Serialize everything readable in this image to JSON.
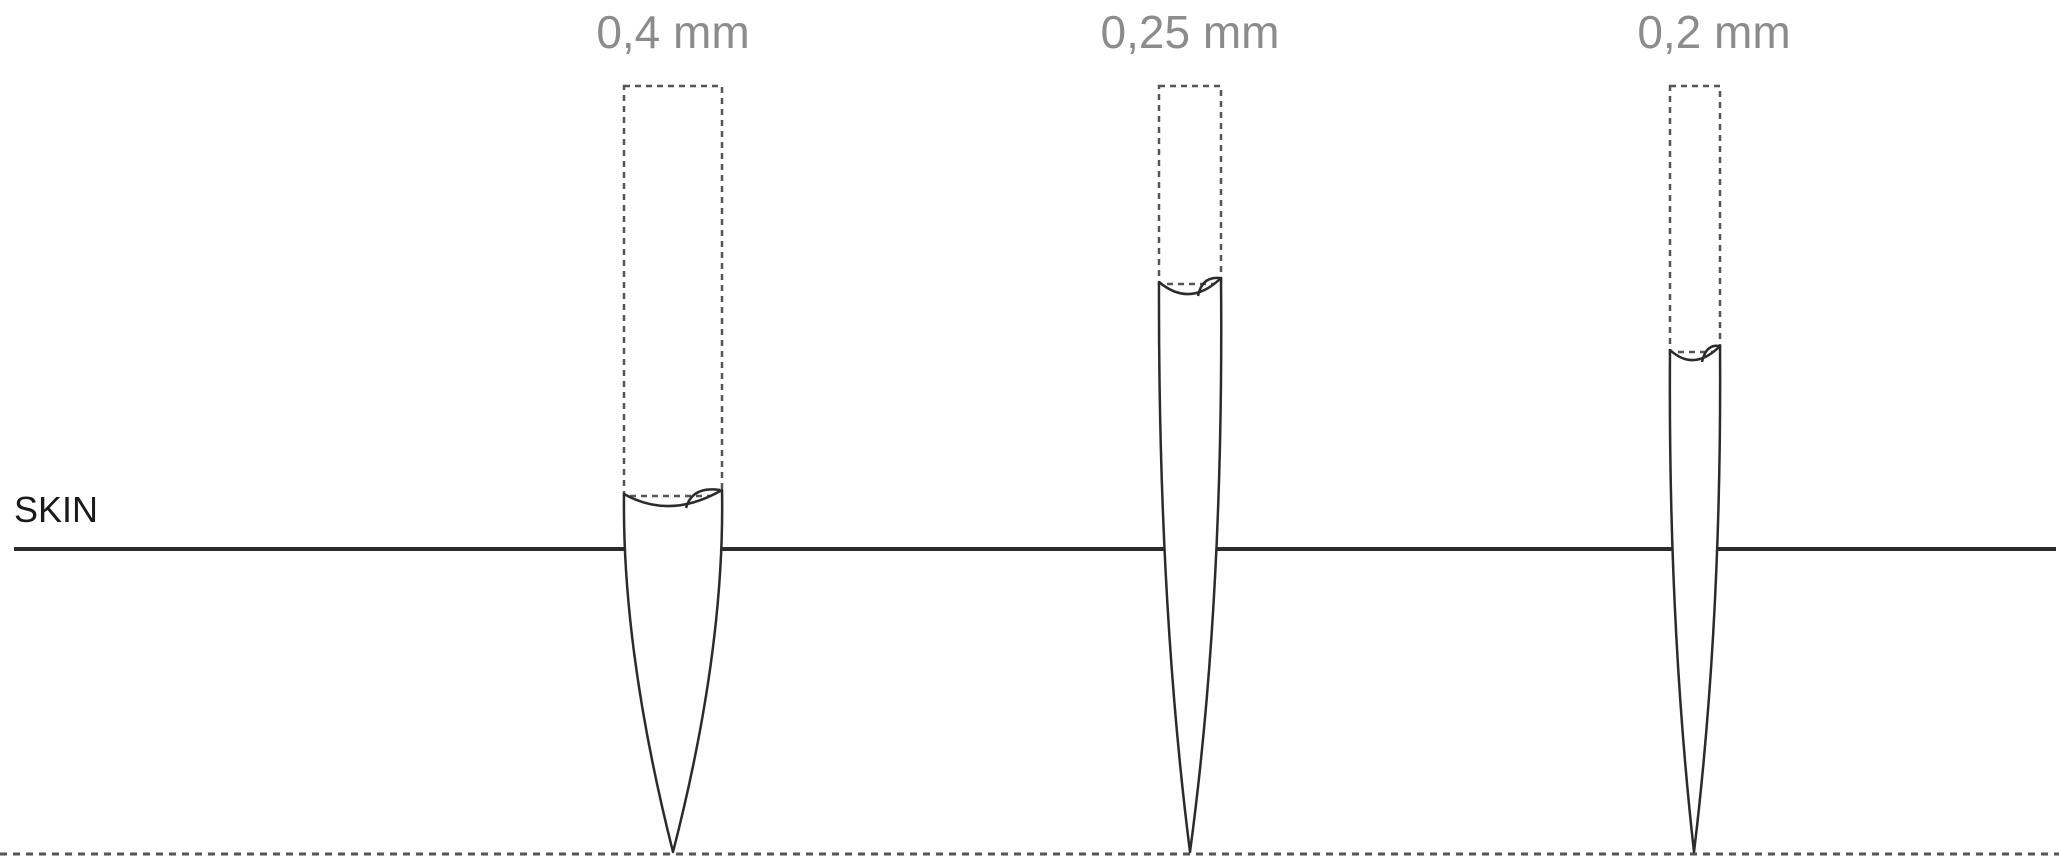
{
  "diagram": {
    "skin_label": "SKIN",
    "colors": {
      "label": "#8c8c8c",
      "line": "#2b2b2b",
      "dashed": "#555555",
      "background": "#ffffff"
    },
    "needles": [
      {
        "label": "0,4 mm",
        "diameter_mm": 0.4
      },
      {
        "label": "0,25 mm",
        "diameter_mm": 0.25
      },
      {
        "label": "0,2 mm",
        "diameter_mm": 0.2
      }
    ]
  }
}
